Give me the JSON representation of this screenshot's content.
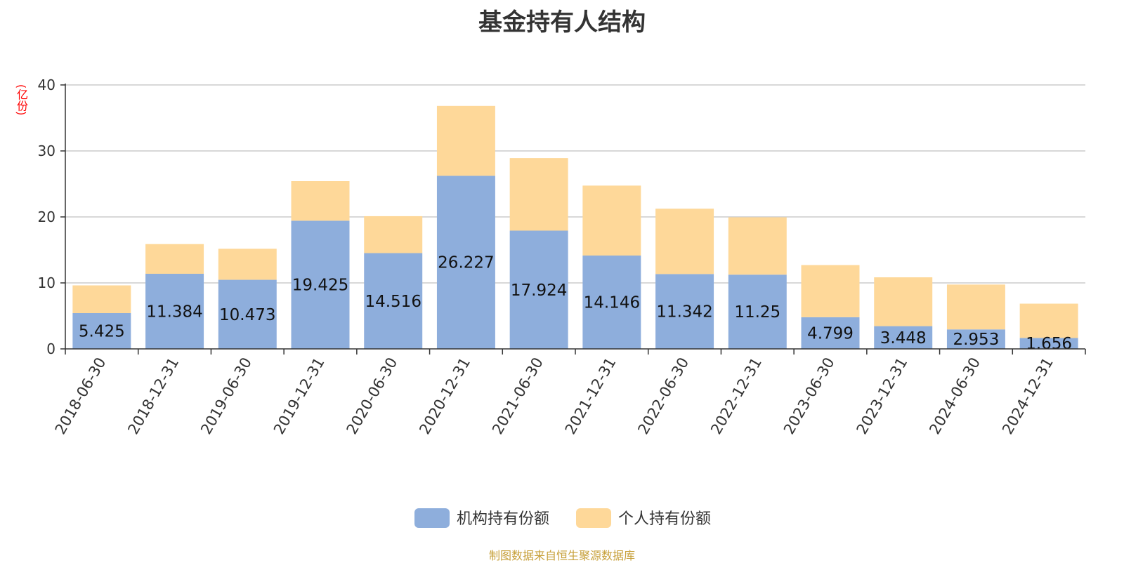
{
  "chart_data": {
    "type": "bar",
    "stacked": true,
    "title": "基金持有人结构",
    "ylabel": "(亿份)",
    "ylim": [
      0,
      40
    ],
    "yticks": [
      0,
      10,
      20,
      30,
      40
    ],
    "grid": true,
    "legend_position": "bottom",
    "categories": [
      "2018-06-30",
      "2018-12-31",
      "2019-06-30",
      "2019-12-31",
      "2020-06-30",
      "2020-12-31",
      "2021-06-30",
      "2021-12-31",
      "2022-06-30",
      "2022-12-31",
      "2023-06-30",
      "2023-12-31",
      "2024-06-30",
      "2024-12-31"
    ],
    "series": [
      {
        "name": "机构持有份额",
        "color": "#8eaedc",
        "values": [
          5.425,
          11.384,
          10.473,
          19.425,
          14.516,
          26.227,
          17.924,
          14.146,
          11.342,
          11.25,
          4.799,
          3.448,
          2.953,
          1.656
        ],
        "labels": [
          "5.425",
          "11.384",
          "10.473",
          "19.425",
          "14.516",
          "26.227",
          "17.924",
          "14.146",
          "11.342",
          "11.25",
          "4.799",
          "3.448",
          "2.953",
          "1.656"
        ]
      },
      {
        "name": "个人持有份额",
        "color": "#fed899",
        "values": [
          4.2,
          4.5,
          4.7,
          6.0,
          5.6,
          10.6,
          11.0,
          10.6,
          9.9,
          8.7,
          7.9,
          7.4,
          6.8,
          5.2
        ]
      }
    ]
  },
  "footer": {
    "source": "制图数据来自恒生聚源数据库"
  }
}
